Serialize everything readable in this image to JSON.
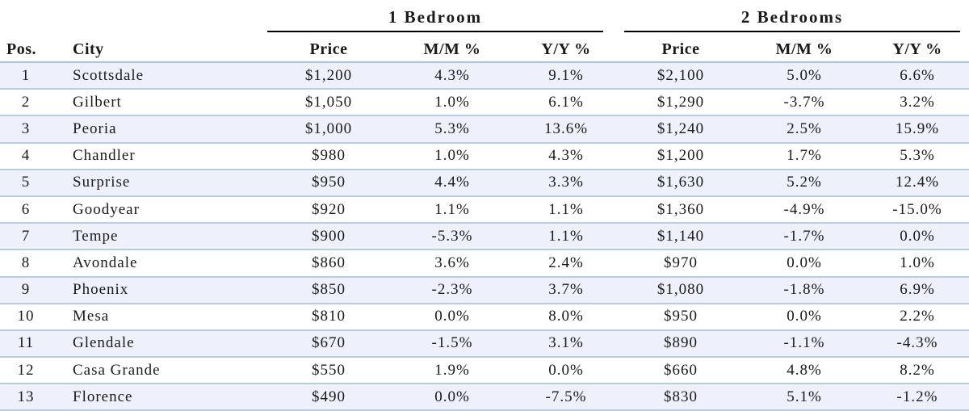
{
  "chart_data": {
    "type": "table",
    "group_headers": [
      "1 Bedroom",
      "2 Bedrooms"
    ],
    "columns": [
      "Pos.",
      "City",
      "Price",
      "M/M %",
      "Y/Y %",
      "Price",
      "M/M %",
      "Y/Y %"
    ],
    "rows": [
      [
        "1",
        "Scottsdale",
        "$1,200",
        "4.3%",
        "9.1%",
        "$2,100",
        "5.0%",
        "6.6%"
      ],
      [
        "2",
        "Gilbert",
        "$1,050",
        "1.0%",
        "6.1%",
        "$1,290",
        "-3.7%",
        "3.2%"
      ],
      [
        "3",
        "Peoria",
        "$1,000",
        "5.3%",
        "13.6%",
        "$1,240",
        "2.5%",
        "15.9%"
      ],
      [
        "4",
        "Chandler",
        "$980",
        "1.0%",
        "4.3%",
        "$1,200",
        "1.7%",
        "5.3%"
      ],
      [
        "5",
        "Surprise",
        "$950",
        "4.4%",
        "3.3%",
        "$1,630",
        "5.2%",
        "12.4%"
      ],
      [
        "6",
        "Goodyear",
        "$920",
        "1.1%",
        "1.1%",
        "$1,360",
        "-4.9%",
        "-15.0%"
      ],
      [
        "7",
        "Tempe",
        "$900",
        "-5.3%",
        "1.1%",
        "$1,140",
        "-1.7%",
        "0.0%"
      ],
      [
        "8",
        "Avondale",
        "$860",
        "3.6%",
        "2.4%",
        "$970",
        "0.0%",
        "1.0%"
      ],
      [
        "9",
        "Phoenix",
        "$850",
        "-2.3%",
        "3.7%",
        "$1,080",
        "-1.8%",
        "6.9%"
      ],
      [
        "10",
        "Mesa",
        "$810",
        "0.0%",
        "8.0%",
        "$950",
        "0.0%",
        "2.2%"
      ],
      [
        "11",
        "Glendale",
        "$670",
        "-1.5%",
        "3.1%",
        "$890",
        "-1.1%",
        "-4.3%"
      ],
      [
        "12",
        "Casa Grande",
        "$550",
        "1.9%",
        "0.0%",
        "$660",
        "4.8%",
        "8.2%"
      ],
      [
        "13",
        "Florence",
        "$490",
        "0.0%",
        "-7.5%",
        "$830",
        "5.1%",
        "-1.2%"
      ]
    ],
    "colors": {
      "band_row": "#eef0fb",
      "plain_row": "#ffffff",
      "row_rule": "#b9cde2",
      "group_rule": "#000000"
    }
  }
}
